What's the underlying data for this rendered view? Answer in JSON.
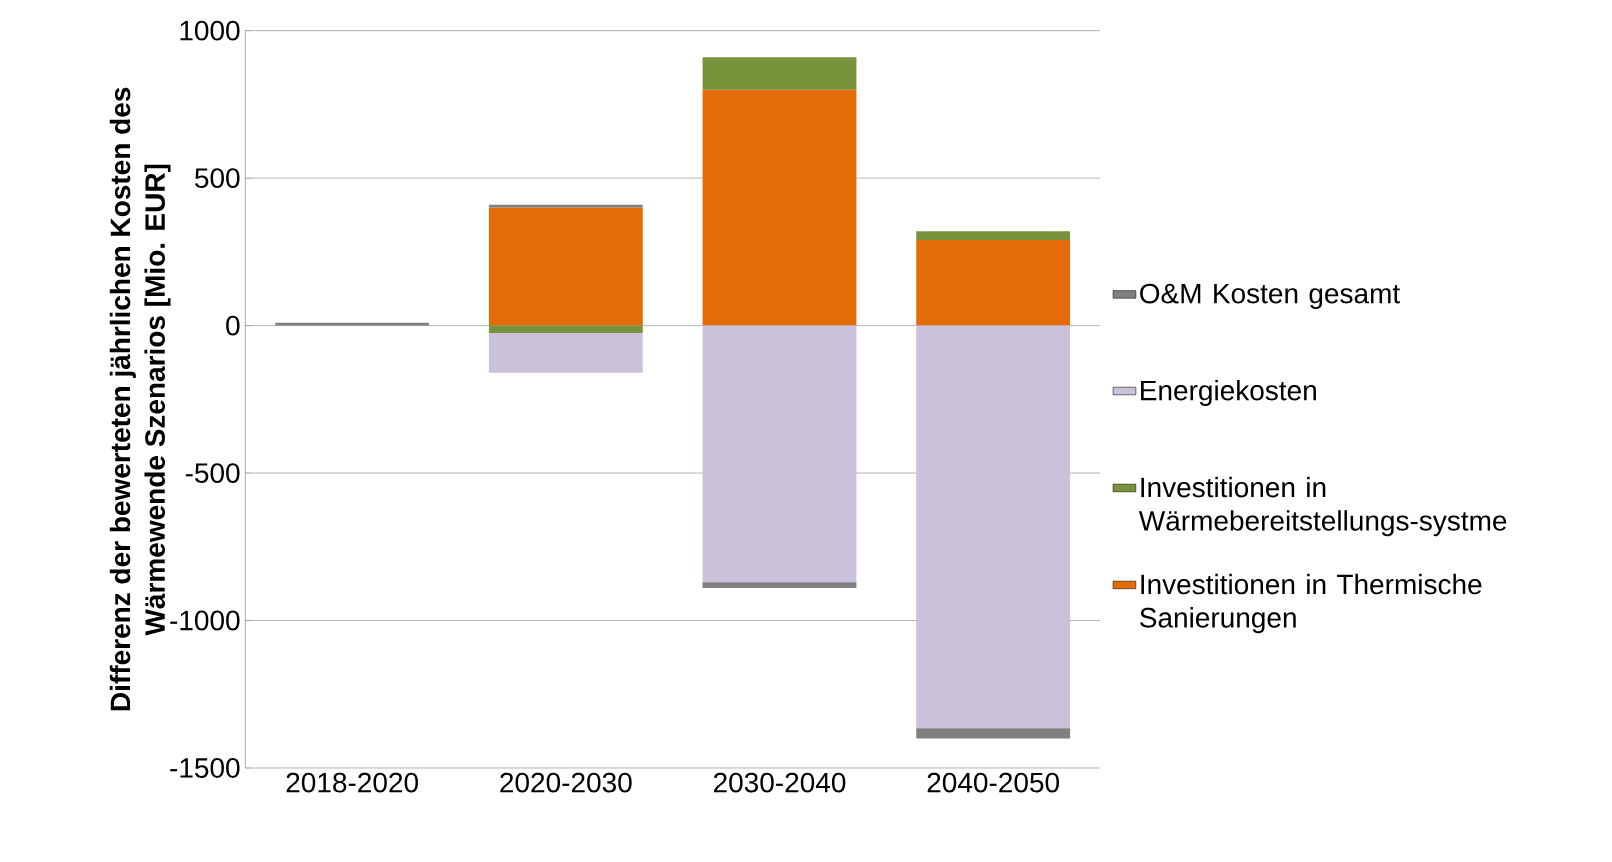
{
  "chart_data": {
    "type": "bar",
    "stacked": true,
    "ylabel": "Differenz der bewerteten jährlichen Kosten des Wärmewende Szenarios [Mio. EUR]",
    "categories": [
      "2018-2020",
      "2020-2030",
      "2030-2040",
      "2040-2050"
    ],
    "series": [
      {
        "name": "Investitionen in Thermische Sanierungen",
        "color": "#e36c09",
        "values": [
          0,
          400,
          800,
          290
        ]
      },
      {
        "name": "Investitionen in Wärmebereitstellungs-systme",
        "color": "#77933c",
        "values": [
          0,
          -25,
          110,
          30
        ]
      },
      {
        "name": "Energiekosten",
        "color": "#ccc1da",
        "values": [
          0,
          -135,
          -870,
          -1365
        ]
      },
      {
        "name": "O&M Kosten gesamt",
        "color": "#808080",
        "values": [
          10,
          10,
          -20,
          -35
        ]
      }
    ],
    "ylim": [
      -1500,
      1000
    ],
    "yticks": [
      -1500,
      -1000,
      -500,
      0,
      500,
      1000
    ],
    "grid": "y",
    "legend": "right"
  }
}
